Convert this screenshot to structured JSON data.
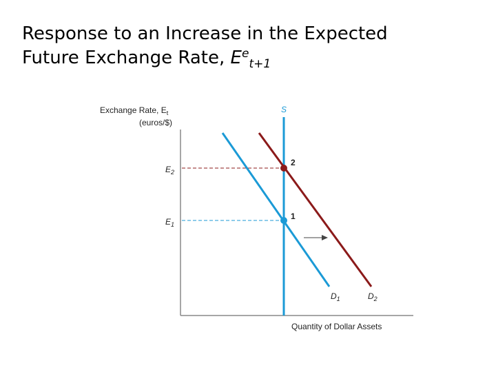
{
  "title": {
    "line1": "Response to an Increase in the Expected",
    "line2_prefix": "Future Exchange Rate, ",
    "line2_var": "E",
    "line2_sup": "e",
    "line2_sub": "t+1"
  },
  "axes": {
    "y_label_line1": "Exchange Rate, E",
    "y_label_line1_sub": "t",
    "y_label_line2": "(euros/$)",
    "x_label": "Quantity of Dollar Assets"
  },
  "curves": {
    "supply": {
      "label": "S",
      "color": "#1b9ad6"
    },
    "demand1": {
      "label": "D",
      "sub": "1",
      "color": "#1b9ad6"
    },
    "demand2": {
      "label": "D",
      "sub": "2",
      "color": "#8b1a1a"
    }
  },
  "levels": {
    "e1": {
      "label": "E",
      "sub": "1"
    },
    "e2": {
      "label": "E",
      "sub": "2"
    }
  },
  "points": {
    "p1": {
      "label": "1",
      "color": "#1b9ad6"
    },
    "p2": {
      "label": "2",
      "color": "#8b1a1a"
    }
  },
  "colors": {
    "axis": "#888888",
    "dashed_guide": "#1b9ad6",
    "dashed_guide_e2": "#8b1a1a",
    "arrow": "#444444"
  }
}
